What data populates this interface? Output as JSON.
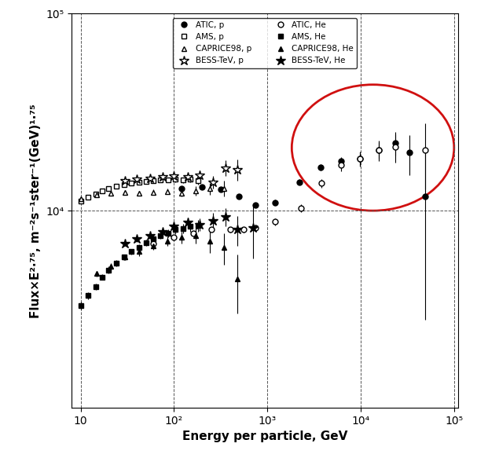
{
  "chart_data": {
    "type": "scatter",
    "x_label": "Energy per particle, GeV",
    "y_label": "Flux×E²·⁷⁵, m⁻²s⁻¹ster⁻¹(GeV)¹·⁷⁵",
    "log": true,
    "grid": true,
    "legend": "upper center",
    "xlim": [
      8,
      110000
    ],
    "ylim": [
      1000,
      100000
    ],
    "xticks": [
      10,
      {
        "value": 100,
        "label": "10²"
      },
      {
        "value": 1000,
        "label": "10³"
      },
      {
        "value": 10000,
        "label": "10⁴"
      },
      {
        "value": 100000,
        "label": "10⁵"
      }
    ],
    "yticks": [
      {
        "value": 10000,
        "label": "10⁴"
      },
      {
        "value": 100000,
        "label": "10⁵"
      }
    ],
    "series": [
      {
        "name": "ATIC, p",
        "color": "#000000",
        "marker": "circle",
        "x": [
          120,
          200,
          320,
          500,
          745,
          1200,
          2200,
          3700,
          6200,
          9800,
          15500,
          23500,
          33000,
          49000
        ],
        "values": [
          13000,
          13200,
          12800,
          11800,
          10700,
          11000,
          14000,
          16600,
          17800,
          18300,
          20300,
          22000,
          19700,
          11800
        ],
        "errors": [
          200,
          200,
          250,
          300,
          300,
          350,
          450,
          600,
          900,
          1300,
          2000,
          3000,
          4500,
          9000
        ]
      },
      {
        "name": "AMS, p",
        "color": "#000000",
        "marker": "open_square",
        "x": [
          10,
          12,
          14.5,
          17,
          20,
          24,
          29,
          35,
          42,
          50,
          60,
          72,
          86,
          104,
          125,
          150,
          180
        ],
        "values": [
          11200,
          11700,
          12200,
          12600,
          13000,
          13300,
          13600,
          13800,
          14000,
          14100,
          14200,
          14300,
          14300,
          14400,
          14300,
          14500,
          14200
        ],
        "errors": [
          200,
          200,
          200,
          200,
          200,
          200,
          250,
          250,
          250,
          300,
          300,
          300,
          350,
          400,
          450,
          500,
          600
        ]
      },
      {
        "name": "CAPRICE98, p",
        "color": "#000000",
        "marker": "open_triangle",
        "x": [
          10,
          15,
          21,
          30,
          42,
          60,
          85,
          120,
          170,
          240,
          340
        ],
        "values": [
          11500,
          12000,
          12300,
          12400,
          12300,
          12400,
          12500,
          12300,
          12600,
          12900,
          13000
        ],
        "errors": [
          300,
          300,
          300,
          300,
          300,
          400,
          400,
          500,
          700,
          900,
          1200
        ]
      },
      {
        "name": "BESS-TeV, p",
        "color": "#000000",
        "marker": "open_star",
        "x": [
          30,
          40,
          55,
          75,
          100,
          140,
          190,
          260,
          360,
          480
        ],
        "values": [
          14200,
          14500,
          14600,
          14800,
          15000,
          14800,
          15200,
          14000,
          16500,
          16200
        ],
        "errors": [
          300,
          300,
          400,
          400,
          500,
          600,
          800,
          1000,
          1500,
          2000
        ]
      },
      {
        "name": "ATIC, He",
        "color": "#000000",
        "marker": "open_circle",
        "x": [
          60,
          100,
          160,
          250,
          400,
          560,
          745,
          1200,
          2300,
          3800,
          6200,
          9800,
          15500,
          23500,
          49000
        ],
        "values": [
          6800,
          7300,
          7700,
          8000,
          8000,
          8000,
          8200,
          8800,
          10300,
          13800,
          17000,
          18300,
          20300,
          21000,
          20300
        ],
        "errors": [
          150,
          150,
          200,
          200,
          250,
          250,
          300,
          350,
          450,
          700,
          1100,
          1600,
          2400,
          3500,
          7500
        ]
      },
      {
        "name": "AMS, He",
        "color": "#000000",
        "marker": "square",
        "x": [
          10,
          12,
          14.5,
          17,
          20,
          24,
          29,
          35,
          42,
          50,
          60,
          72,
          86,
          104,
          125,
          150,
          180
        ],
        "values": [
          3300,
          3700,
          4100,
          4600,
          5000,
          5400,
          5800,
          6200,
          6500,
          6900,
          7200,
          7500,
          7700,
          8000,
          8100,
          8300,
          8400
        ],
        "errors": [
          150,
          150,
          150,
          150,
          200,
          200,
          200,
          200,
          250,
          250,
          300,
          300,
          350,
          400,
          450,
          500,
          600
        ]
      },
      {
        "name": "CAPRICE98, He",
        "color": "#000000",
        "marker": "triangle",
        "x": [
          15,
          21,
          30,
          42,
          60,
          85,
          120,
          170,
          240,
          340,
          480
        ],
        "values": [
          4800,
          5200,
          5800,
          6200,
          6600,
          7000,
          7300,
          7500,
          7000,
          6500,
          4500
        ],
        "errors": [
          150,
          200,
          200,
          300,
          300,
          400,
          500,
          700,
          900,
          1200,
          1500
        ]
      },
      {
        "name": "BESS-TeV, He",
        "color": "#000000",
        "marker": "star",
        "x": [
          30,
          40,
          55,
          75,
          100,
          140,
          190,
          260,
          360,
          480,
          700
        ],
        "values": [
          6800,
          7200,
          7500,
          7800,
          8300,
          8700,
          8500,
          8900,
          9300,
          8000,
          8200
        ],
        "errors": [
          200,
          250,
          300,
          350,
          400,
          500,
          600,
          800,
          1000,
          1400,
          2500
        ]
      }
    ]
  }
}
